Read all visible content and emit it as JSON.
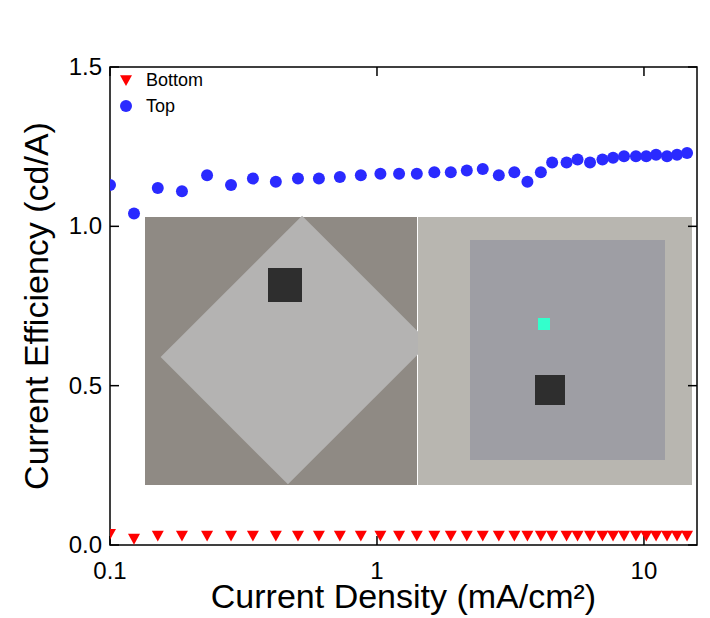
{
  "chart_data": {
    "type": "scatter",
    "x_label": "Current Density (mA/cm²)",
    "y_label": "Current Efficiency (cd/A)",
    "log": "x",
    "legend": "upper left",
    "grid": false,
    "xlim": [
      0.1,
      15.8
    ],
    "ylim": [
      0,
      1.5
    ],
    "xticks": [
      0.1,
      1,
      10
    ],
    "yticks": [
      {
        "value": 0,
        "label": "0.0"
      },
      {
        "value": 0.5,
        "label": "0.5"
      },
      {
        "value": 1,
        "label": "1.0"
      },
      {
        "value": 1.5,
        "label": "1.5"
      }
    ],
    "x": [
      0.1,
      0.123,
      0.151,
      0.186,
      0.231,
      0.284,
      0.343,
      0.418,
      0.506,
      0.606,
      0.726,
      0.87,
      1.03,
      1.21,
      1.41,
      1.64,
      1.89,
      2.17,
      2.49,
      2.86,
      3.27,
      3.66,
      4.11,
      4.53,
      5.13,
      5.64,
      6.28,
      6.99,
      7.66,
      8.42,
      9.33,
      10.2,
      11.1,
      12.2,
      13.3,
      14.5
    ],
    "series": [
      {
        "name": "Bottom",
        "color": "#ff0000",
        "marker": "triangle-down",
        "values": [
          0.035,
          0.02,
          0.03,
          0.03,
          0.03,
          0.03,
          0.03,
          0.03,
          0.03,
          0.03,
          0.03,
          0.03,
          0.03,
          0.03,
          0.03,
          0.03,
          0.03,
          0.03,
          0.03,
          0.03,
          0.03,
          0.03,
          0.03,
          0.03,
          0.03,
          0.03,
          0.03,
          0.03,
          0.03,
          0.03,
          0.03,
          0.03,
          0.03,
          0.03,
          0.03,
          0.03
        ]
      },
      {
        "name": "Top",
        "color": "#2a2aff",
        "marker": "circle",
        "values": [
          1.13,
          1.04,
          1.12,
          1.11,
          1.16,
          1.13,
          1.15,
          1.14,
          1.15,
          1.15,
          1.155,
          1.16,
          1.165,
          1.165,
          1.165,
          1.17,
          1.17,
          1.175,
          1.18,
          1.16,
          1.17,
          1.14,
          1.17,
          1.2,
          1.2,
          1.21,
          1.2,
          1.21,
          1.215,
          1.22,
          1.22,
          1.22,
          1.225,
          1.22,
          1.225,
          1.23
        ]
      }
    ]
  }
}
